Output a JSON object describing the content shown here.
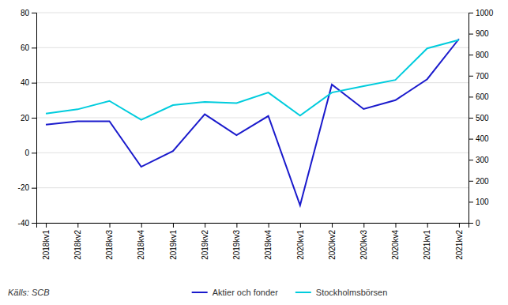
{
  "chart_data": {
    "type": "line",
    "categories": [
      "2018kv1",
      "2018kv2",
      "2018kv3",
      "2018kv4",
      "2019kv1",
      "2019kv2",
      "2019kv3",
      "2019kv4",
      "2020kv1",
      "2020kv2",
      "2020kv3",
      "2020kv4",
      "2021kv1",
      "2021kv2"
    ],
    "series": [
      {
        "name": "Aktier och fonder",
        "color": "#1a1acc",
        "values": [
          16,
          18,
          18,
          -8,
          1,
          22,
          10,
          21,
          -30,
          39,
          25,
          30,
          42,
          65
        ]
      },
      {
        "name": "Stockholmsbörsen",
        "color": "#00ccdd",
        "axis": "y2",
        "values": [
          520,
          540,
          580,
          490,
          560,
          575,
          570,
          620,
          510,
          620,
          650,
          680,
          830,
          870
        ]
      }
    ],
    "ylim": [
      -40,
      80
    ],
    "yticks": [
      -40,
      -20,
      0,
      20,
      40,
      60,
      80
    ],
    "y2lim": [
      0,
      1000
    ],
    "y2ticks": [
      0,
      100,
      200,
      300,
      400,
      500,
      600,
      700,
      800,
      900,
      1000
    ],
    "grid": true,
    "legend": "bottom",
    "annotations": [
      "Källs: SCB"
    ]
  }
}
